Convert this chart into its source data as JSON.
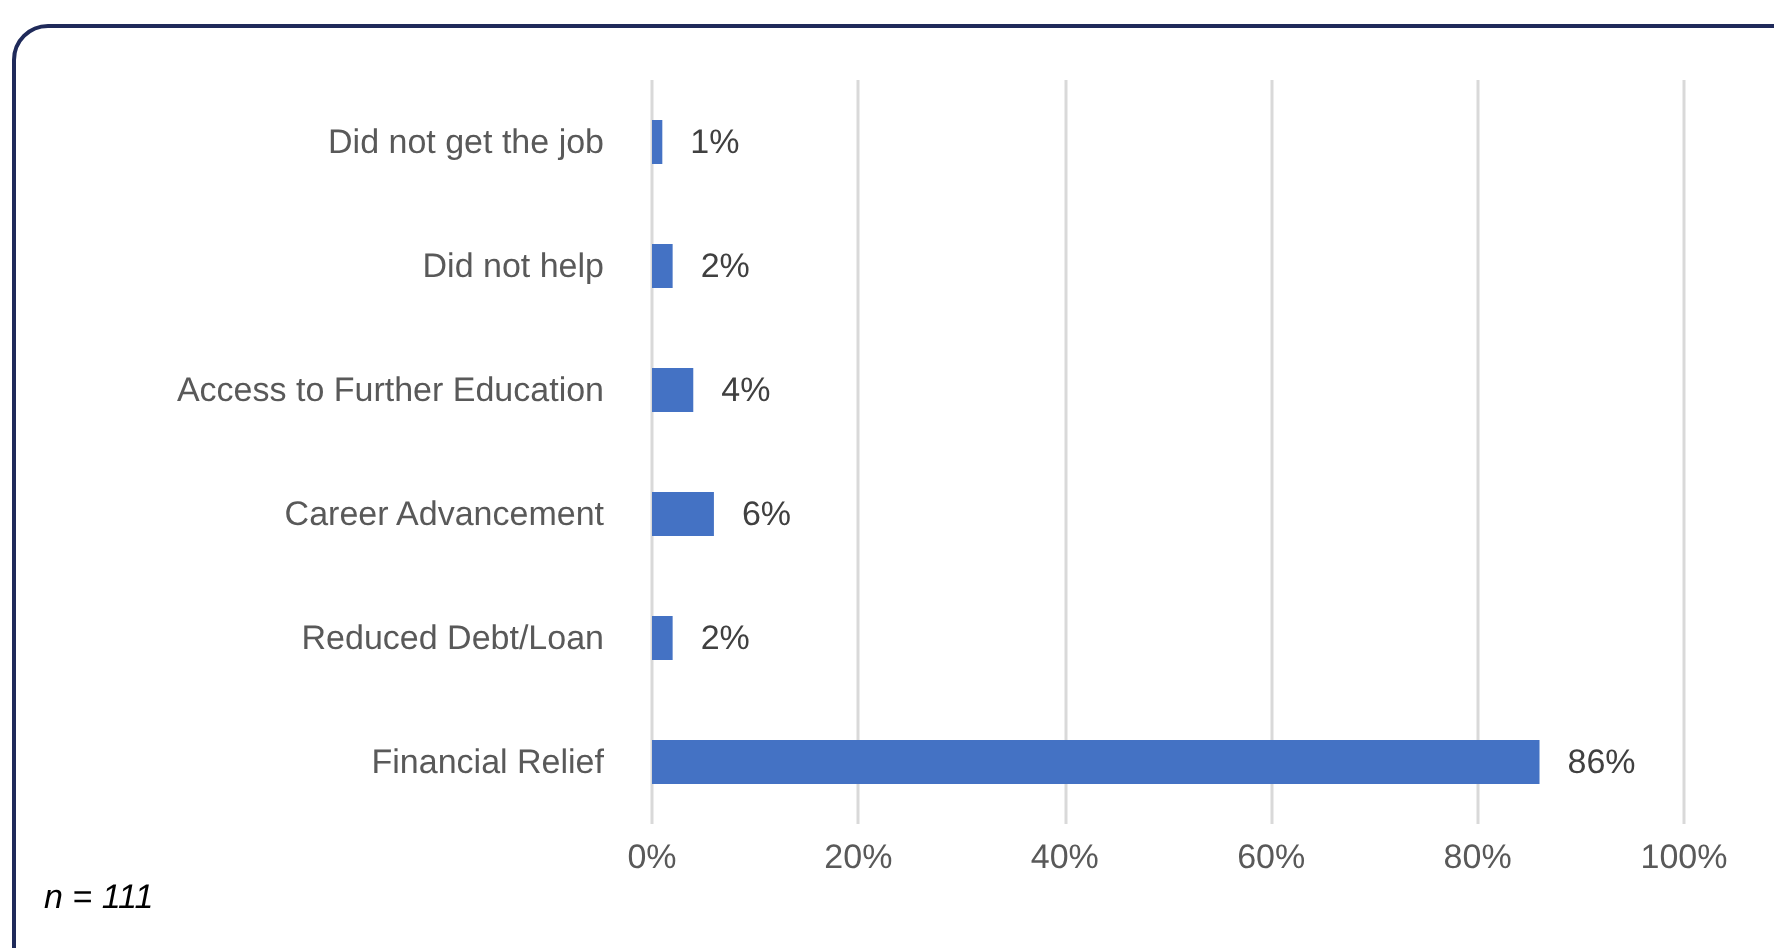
{
  "chart_data": {
    "type": "bar",
    "orientation": "horizontal",
    "categories": [
      "Did not get the job",
      "Did not help",
      "Access to Further Education",
      "Career Advancement",
      "Reduced Debt/Loan",
      "Financial Relief"
    ],
    "values": [
      1,
      2,
      4,
      6,
      2,
      86
    ],
    "value_labels": [
      "1%",
      "2%",
      "4%",
      "6%",
      "2%",
      "86%"
    ],
    "color": "#4472c4",
    "xlim": [
      0,
      100
    ],
    "xticks": [
      {
        "value": 0,
        "label": "0%"
      },
      {
        "value": 20,
        "label": "20%"
      },
      {
        "value": 40,
        "label": "40%"
      },
      {
        "value": 60,
        "label": "60%"
      },
      {
        "value": 80,
        "label": "80%"
      },
      {
        "value": 100,
        "label": "100%"
      }
    ],
    "grid": "x",
    "annotations": [
      "n = 111"
    ]
  }
}
